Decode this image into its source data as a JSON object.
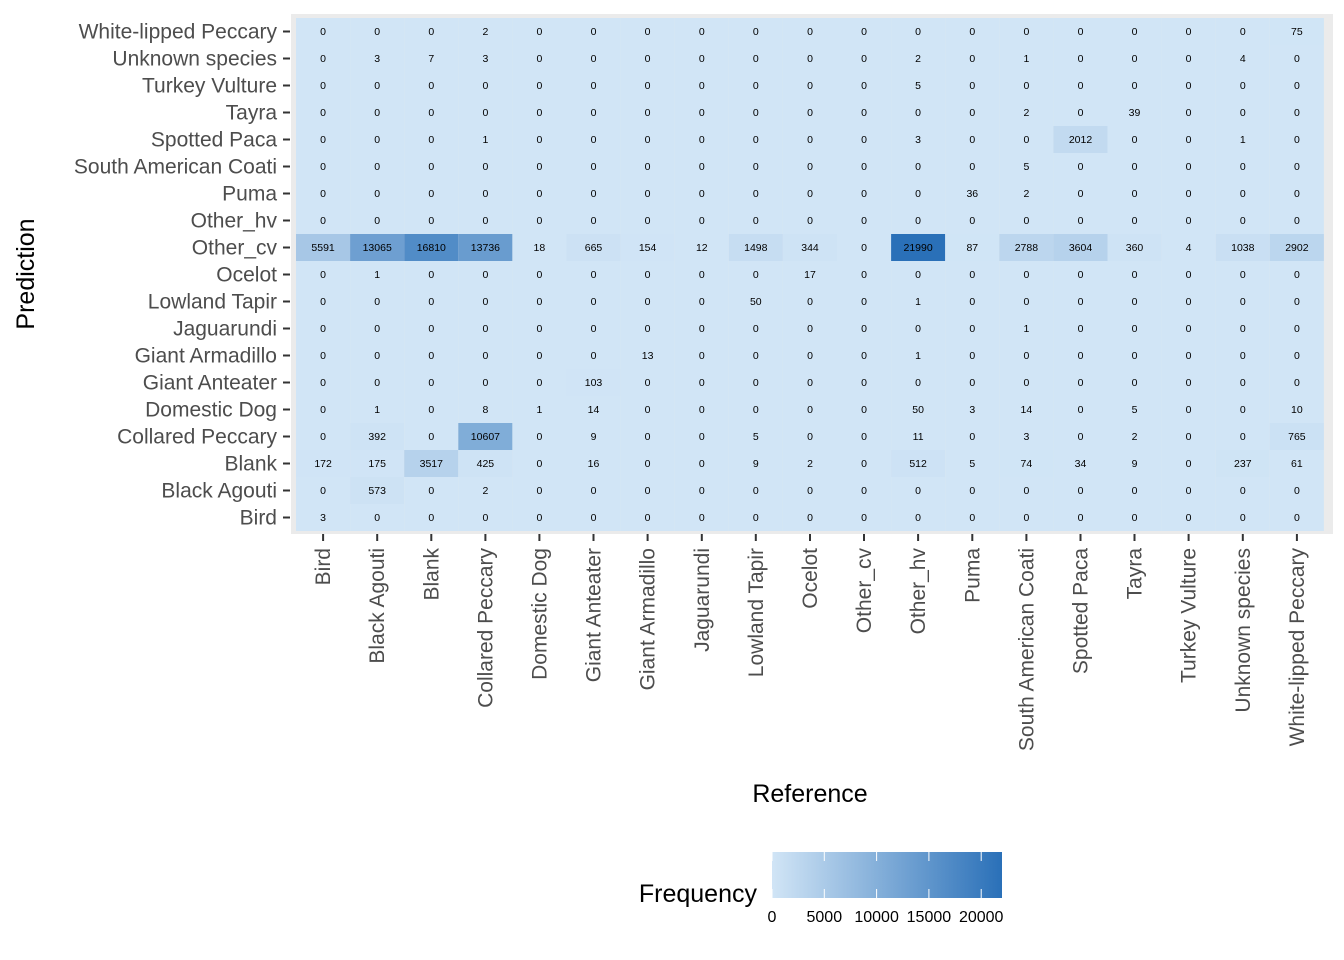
{
  "chart_data": {
    "type": "heatmap",
    "xlabel": "Reference",
    "ylabel": "Prediction",
    "x_categories": [
      "Bird",
      "Black Agouti",
      "Blank",
      "Collared Peccary",
      "Domestic Dog",
      "Giant Anteater",
      "Giant Armadillo",
      "Jaguarundi",
      "Lowland Tapir",
      "Ocelot",
      "Other_cv",
      "Other_hv",
      "Puma",
      "South American Coati",
      "Spotted Paca",
      "Tayra",
      "Turkey Vulture",
      "Unknown species",
      "White-lipped Peccary"
    ],
    "y_categories": [
      "Bird",
      "Black Agouti",
      "Blank",
      "Collared Peccary",
      "Domestic Dog",
      "Giant Anteater",
      "Giant Armadillo",
      "Jaguarundi",
      "Lowland Tapir",
      "Ocelot",
      "Other_cv",
      "Other_hv",
      "Puma",
      "South American Coati",
      "Spotted Paca",
      "Tayra",
      "Turkey Vulture",
      "Unknown species",
      "White-lipped Peccary"
    ],
    "values": [
      [
        3,
        0,
        0,
        0,
        0,
        0,
        0,
        0,
        0,
        0,
        0,
        0,
        0,
        0,
        0,
        0,
        0,
        0,
        0
      ],
      [
        0,
        573,
        0,
        2,
        0,
        0,
        0,
        0,
        0,
        0,
        0,
        0,
        0,
        0,
        0,
        0,
        0,
        0,
        0
      ],
      [
        172,
        175,
        3517,
        425,
        0,
        16,
        0,
        0,
        9,
        2,
        0,
        512,
        5,
        74,
        34,
        9,
        0,
        237,
        61
      ],
      [
        0,
        392,
        0,
        10607,
        0,
        9,
        0,
        0,
        5,
        0,
        0,
        11,
        0,
        3,
        0,
        2,
        0,
        0,
        765
      ],
      [
        0,
        1,
        0,
        8,
        1,
        14,
        0,
        0,
        0,
        0,
        0,
        50,
        3,
        14,
        0,
        5,
        0,
        0,
        10
      ],
      [
        0,
        0,
        0,
        0,
        0,
        103,
        0,
        0,
        0,
        0,
        0,
        0,
        0,
        0,
        0,
        0,
        0,
        0,
        0
      ],
      [
        0,
        0,
        0,
        0,
        0,
        0,
        13,
        0,
        0,
        0,
        0,
        1,
        0,
        0,
        0,
        0,
        0,
        0,
        0
      ],
      [
        0,
        0,
        0,
        0,
        0,
        0,
        0,
        0,
        0,
        0,
        0,
        0,
        0,
        1,
        0,
        0,
        0,
        0,
        0
      ],
      [
        0,
        0,
        0,
        0,
        0,
        0,
        0,
        0,
        50,
        0,
        0,
        1,
        0,
        0,
        0,
        0,
        0,
        0,
        0
      ],
      [
        0,
        1,
        0,
        0,
        0,
        0,
        0,
        0,
        0,
        17,
        0,
        0,
        0,
        0,
        0,
        0,
        0,
        0,
        0
      ],
      [
        5591,
        13065,
        16810,
        13736,
        18,
        665,
        154,
        12,
        1498,
        344,
        0,
        21990,
        87,
        2788,
        3604,
        360,
        4,
        1038,
        2902
      ],
      [
        0,
        0,
        0,
        0,
        0,
        0,
        0,
        0,
        0,
        0,
        0,
        0,
        0,
        0,
        0,
        0,
        0,
        0,
        0
      ],
      [
        0,
        0,
        0,
        0,
        0,
        0,
        0,
        0,
        0,
        0,
        0,
        0,
        36,
        2,
        0,
        0,
        0,
        0,
        0
      ],
      [
        0,
        0,
        0,
        0,
        0,
        0,
        0,
        0,
        0,
        0,
        0,
        0,
        0,
        5,
        0,
        0,
        0,
        0,
        0
      ],
      [
        0,
        0,
        0,
        1,
        0,
        0,
        0,
        0,
        0,
        0,
        0,
        3,
        0,
        0,
        2012,
        0,
        0,
        1,
        0
      ],
      [
        0,
        0,
        0,
        0,
        0,
        0,
        0,
        0,
        0,
        0,
        0,
        0,
        0,
        2,
        0,
        39,
        0,
        0,
        0
      ],
      [
        0,
        0,
        0,
        0,
        0,
        0,
        0,
        0,
        0,
        0,
        0,
        5,
        0,
        0,
        0,
        0,
        0,
        0,
        0
      ],
      [
        0,
        3,
        7,
        3,
        0,
        0,
        0,
        0,
        0,
        0,
        0,
        2,
        0,
        1,
        0,
        0,
        0,
        4,
        0
      ],
      [
        0,
        0,
        0,
        2,
        0,
        0,
        0,
        0,
        0,
        0,
        0,
        0,
        0,
        0,
        0,
        0,
        0,
        0,
        75
      ]
    ],
    "legend": {
      "title": "Frequency",
      "position": "bottom",
      "ticks": [
        0,
        5000,
        10000,
        15000,
        20000
      ],
      "tick_labels": [
        "0",
        "5000",
        "10000",
        "15000",
        "20000"
      ],
      "range": [
        0,
        21990
      ],
      "low_color": "#d1e5f6",
      "high_color": "#2a70b8"
    },
    "panel_background": "#ebebeb",
    "grid": false
  }
}
